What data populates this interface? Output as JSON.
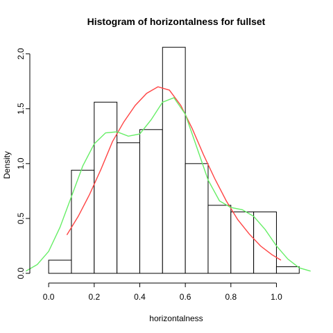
{
  "chart_data": {
    "type": "histogram",
    "title": "Histogram of horizontalness for fullset",
    "xlabel": "horizontalness",
    "ylabel": "Density",
    "xlim": [
      -0.04,
      1.16
    ],
    "ylim": [
      0,
      2.08
    ],
    "x_ticks": [
      0.0,
      0.2,
      0.4,
      0.6,
      0.8,
      1.0
    ],
    "x_tick_labels": [
      "0.0",
      "0.2",
      "0.4",
      "0.6",
      "0.8",
      "1.0"
    ],
    "y_ticks": [
      0.0,
      0.5,
      1.0,
      1.5,
      2.0
    ],
    "y_tick_labels": [
      "0.0",
      "0.5",
      "1.0",
      "1.5",
      "2.0"
    ],
    "bins": [
      {
        "start": 0.0,
        "end": 0.1,
        "density": 0.12
      },
      {
        "start": 0.1,
        "end": 0.2,
        "density": 0.94
      },
      {
        "start": 0.2,
        "end": 0.3,
        "density": 1.56
      },
      {
        "start": 0.3,
        "end": 0.4,
        "density": 1.19
      },
      {
        "start": 0.4,
        "end": 0.5,
        "density": 1.31
      },
      {
        "start": 0.5,
        "end": 0.6,
        "density": 2.06
      },
      {
        "start": 0.6,
        "end": 0.7,
        "density": 1.0
      },
      {
        "start": 0.7,
        "end": 0.8,
        "density": 0.62
      },
      {
        "start": 0.8,
        "end": 0.9,
        "density": 0.56
      },
      {
        "start": 0.9,
        "end": 1.0,
        "density": 0.56
      },
      {
        "start": 1.0,
        "end": 1.1,
        "density": 0.06
      }
    ],
    "series": [
      {
        "color": "#ff4444",
        "x": [
          0.08,
          0.13,
          0.18,
          0.23,
          0.28,
          0.33,
          0.38,
          0.43,
          0.48,
          0.53,
          0.58,
          0.63,
          0.68,
          0.73,
          0.78,
          0.83,
          0.88,
          0.93,
          0.98,
          1.02
        ],
        "y": [
          0.35,
          0.52,
          0.72,
          0.95,
          1.2,
          1.38,
          1.53,
          1.64,
          1.7,
          1.67,
          1.53,
          1.32,
          1.08,
          0.86,
          0.66,
          0.49,
          0.36,
          0.25,
          0.17,
          0.12
        ]
      },
      {
        "color": "#66ee66",
        "x": [
          -0.1,
          -0.05,
          0.0,
          0.05,
          0.1,
          0.15,
          0.2,
          0.25,
          0.3,
          0.35,
          0.4,
          0.45,
          0.5,
          0.55,
          0.6,
          0.65,
          0.7,
          0.75,
          0.8,
          0.85,
          0.9,
          0.95,
          1.0,
          1.05,
          1.1,
          1.15
        ],
        "y": [
          0.02,
          0.08,
          0.2,
          0.42,
          0.7,
          0.98,
          1.18,
          1.28,
          1.29,
          1.25,
          1.27,
          1.4,
          1.56,
          1.6,
          1.45,
          1.15,
          0.85,
          0.66,
          0.6,
          0.58,
          0.52,
          0.4,
          0.25,
          0.13,
          0.05,
          0.02
        ]
      }
    ]
  }
}
